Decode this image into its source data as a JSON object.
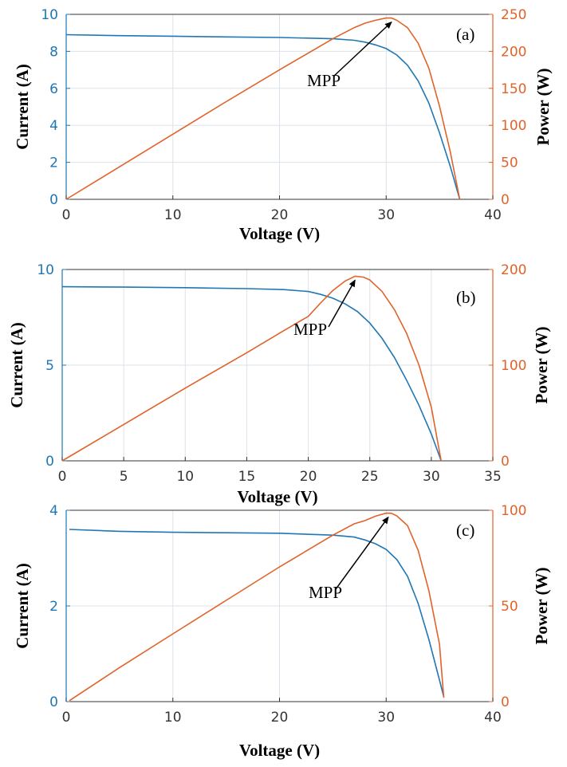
{
  "colors": {
    "current": "#1f77b4",
    "power": "#e0632a",
    "grid": "#dde3ea",
    "axis_left": "#1f77b4",
    "axis_right": "#e0632a"
  },
  "chart_data": [
    {
      "type": "line",
      "panel_label": "(a)",
      "annotation": "MPP",
      "xlabel": "Voltage (V)",
      "ylabel": "Current (A)",
      "y2label": "Power (W)",
      "xlim": [
        0,
        40
      ],
      "ylim": [
        0,
        10
      ],
      "y2lim": [
        0,
        250
      ],
      "xticks": [
        0,
        10,
        20,
        30,
        40
      ],
      "yticks": [
        0,
        2,
        4,
        6,
        8,
        10
      ],
      "y2ticks": [
        0,
        50,
        100,
        150,
        200,
        250
      ],
      "grid": true,
      "mpp": [
        30.5,
        245
      ],
      "series": [
        {
          "axis": "left",
          "x": [
            0,
            5,
            10,
            15,
            20,
            25,
            27,
            28,
            29,
            30,
            31,
            32,
            33,
            34,
            35,
            36,
            36.9
          ],
          "y": [
            8.9,
            8.85,
            8.82,
            8.78,
            8.75,
            8.68,
            8.6,
            8.5,
            8.35,
            8.15,
            7.8,
            7.25,
            6.4,
            5.2,
            3.6,
            1.8,
            0
          ]
        },
        {
          "axis": "right",
          "x": [
            0,
            5,
            10,
            15,
            20,
            25,
            27,
            28,
            29,
            30,
            30.5,
            31,
            32,
            33,
            34,
            35,
            36,
            36.9
          ],
          "y": [
            0,
            44,
            88,
            132,
            175,
            217,
            232,
            238,
            242,
            245,
            245,
            242,
            232,
            211,
            177,
            126,
            65,
            0
          ]
        }
      ]
    },
    {
      "type": "line",
      "panel_label": "(b)",
      "annotation": "MPP",
      "xlabel": "Voltage (V)",
      "ylabel": "Current (A)",
      "y2label": "Power (W)",
      "xlim": [
        0,
        35
      ],
      "ylim": [
        0,
        10
      ],
      "y2lim": [
        0,
        200
      ],
      "xticks": [
        0,
        5,
        10,
        15,
        20,
        25,
        30,
        35
      ],
      "yticks": [
        0,
        5,
        10
      ],
      "y2ticks": [
        0,
        100,
        200
      ],
      "grid": true,
      "mpp": [
        23.8,
        193
      ],
      "series": [
        {
          "axis": "left",
          "x": [
            0,
            5,
            10,
            15,
            18,
            20,
            21,
            22,
            23,
            24,
            25,
            26,
            27,
            28,
            29,
            30,
            30.8
          ],
          "y": [
            9.1,
            9.08,
            9.05,
            9.0,
            8.95,
            8.85,
            8.7,
            8.5,
            8.2,
            7.8,
            7.2,
            6.4,
            5.4,
            4.2,
            2.9,
            1.4,
            0
          ]
        },
        {
          "axis": "right",
          "x": [
            0,
            5,
            10,
            15,
            18,
            20,
            21,
            22,
            23,
            23.8,
            24.5,
            25,
            26,
            27,
            28,
            29,
            30,
            30.8
          ],
          "y": [
            0,
            38,
            76,
            113,
            136,
            151,
            165,
            178,
            188,
            193,
            192,
            189,
            177,
            158,
            133,
            100,
            56,
            0
          ]
        }
      ]
    },
    {
      "type": "line",
      "panel_label": "(c)",
      "annotation": "MPP",
      "xlabel": "Voltage (V)",
      "ylabel": "Current (A)",
      "y2label": "Power (W)",
      "xlim": [
        0,
        40
      ],
      "ylim": [
        0,
        4
      ],
      "y2lim": [
        0,
        100
      ],
      "xticks": [
        0,
        10,
        20,
        30,
        40
      ],
      "yticks": [
        0,
        2,
        4
      ],
      "y2ticks": [
        0,
        50,
        100
      ],
      "grid": true,
      "mpp": [
        30.2,
        98.5
      ],
      "series": [
        {
          "axis": "left",
          "x": [
            0.3,
            5,
            10,
            15,
            20,
            25,
            27,
            28,
            29,
            30,
            31,
            32,
            33,
            34,
            35,
            35.4
          ],
          "y": [
            3.6,
            3.56,
            3.54,
            3.53,
            3.52,
            3.48,
            3.44,
            3.38,
            3.3,
            3.18,
            2.97,
            2.62,
            2.05,
            1.3,
            0.45,
            0.1
          ]
        },
        {
          "axis": "right",
          "x": [
            0.3,
            5,
            10,
            15,
            20,
            25,
            27,
            28,
            29,
            30,
            30.5,
            31,
            32,
            33,
            34,
            35,
            35.4
          ],
          "y": [
            0.5,
            17.8,
            35.4,
            52.9,
            70.4,
            87,
            92.9,
            94.6,
            96.9,
            98.5,
            98.4,
            97.1,
            92,
            79,
            58,
            30,
            2
          ]
        }
      ]
    }
  ]
}
